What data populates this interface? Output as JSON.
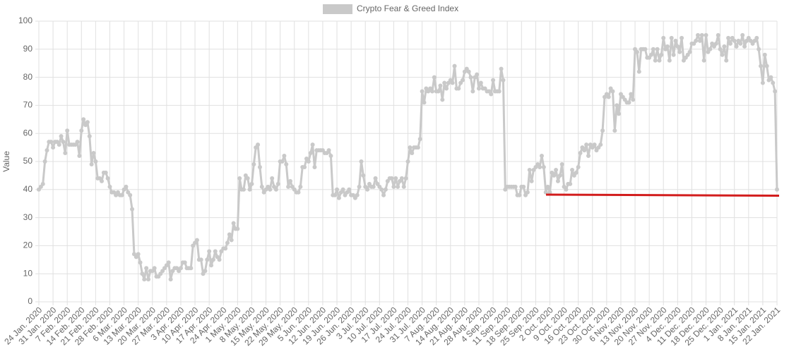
{
  "chart_data": {
    "type": "line",
    "legend": "top",
    "y_label": "Value",
    "ylim": [
      0,
      100
    ],
    "yticks": [
      0,
      10,
      20,
      30,
      40,
      50,
      60,
      70,
      80,
      90,
      100
    ],
    "grid": true,
    "categories": [
      "24 Jan. 2020",
      null,
      null,
      null,
      null,
      null,
      null,
      "31 Jan. 2020",
      null,
      null,
      null,
      null,
      null,
      null,
      "7 Feb. 2020",
      null,
      null,
      null,
      null,
      null,
      null,
      "14 Feb. 2020",
      null,
      null,
      null,
      null,
      null,
      null,
      "21 Feb. 2020",
      null,
      null,
      null,
      null,
      null,
      null,
      "28 Feb. 2020",
      null,
      null,
      null,
      null,
      null,
      null,
      "6 Mar. 2020",
      null,
      null,
      null,
      null,
      null,
      null,
      "13 Mar. 2020",
      null,
      null,
      null,
      null,
      null,
      null,
      "20 Mar. 2020",
      null,
      null,
      null,
      null,
      null,
      null,
      "27 Mar. 2020",
      null,
      null,
      null,
      null,
      null,
      null,
      "3 Apr. 2020",
      null,
      null,
      null,
      null,
      null,
      null,
      "10 Apr. 2020",
      null,
      null,
      null,
      null,
      null,
      null,
      "17 Apr. 2020",
      null,
      null,
      null,
      null,
      null,
      null,
      "24 Apr. 2020",
      null,
      null,
      null,
      null,
      null,
      null,
      "1 May. 2020",
      null,
      null,
      null,
      null,
      null,
      null,
      "8 May. 2020",
      null,
      null,
      null,
      null,
      null,
      null,
      "15 May. 2020",
      null,
      null,
      null,
      null,
      null,
      null,
      "22 May. 2020",
      null,
      null,
      null,
      null,
      null,
      null,
      "29 May. 2020",
      null,
      null,
      null,
      null,
      null,
      null,
      "5 Jun. 2020",
      null,
      null,
      null,
      null,
      null,
      null,
      "12 Jun. 2020",
      null,
      null,
      null,
      null,
      null,
      null,
      "19 Jun. 2020",
      null,
      null,
      null,
      null,
      null,
      null,
      "26 Jun. 2020",
      null,
      null,
      null,
      null,
      null,
      null,
      "3 Jul. 2020",
      null,
      null,
      null,
      null,
      null,
      null,
      "10 Jul. 2020",
      null,
      null,
      null,
      null,
      null,
      null,
      "17 Jul. 2020",
      null,
      null,
      null,
      null,
      null,
      null,
      "24 Jul. 2020",
      null,
      null,
      null,
      null,
      null,
      null,
      "31 Jul. 2020",
      null,
      null,
      null,
      null,
      null,
      null,
      "7 Aug. 2020",
      null,
      null,
      null,
      null,
      null,
      null,
      "14 Aug. 2020",
      null,
      null,
      null,
      null,
      null,
      null,
      "21 Aug. 2020",
      null,
      null,
      null,
      null,
      null,
      null,
      "28 Aug. 2020",
      null,
      null,
      null,
      null,
      null,
      null,
      "4 Sep. 2020",
      null,
      null,
      null,
      null,
      null,
      null,
      "11 Sep. 2020",
      null,
      null,
      null,
      null,
      null,
      null,
      "18 Sep. 2020",
      null,
      null,
      null,
      null,
      null,
      null,
      "25 Sep. 2020",
      null,
      null,
      null,
      null,
      null,
      null,
      "2 Oct. 2020",
      null,
      null,
      null,
      null,
      null,
      null,
      "9 Oct. 2020",
      null,
      null,
      null,
      null,
      null,
      null,
      "16 Oct. 2020",
      null,
      null,
      null,
      null,
      null,
      null,
      "23 Oct. 2020",
      null,
      null,
      null,
      null,
      null,
      null,
      "30 Oct. 2020",
      null,
      null,
      null,
      null,
      null,
      null,
      "6 Nov. 2020",
      null,
      null,
      null,
      null,
      null,
      null,
      "13 Nov. 2020",
      null,
      null,
      null,
      null,
      null,
      null,
      "20 Nov. 2020",
      null,
      null,
      null,
      null,
      null,
      null,
      "27 Nov. 2020",
      null,
      null,
      null,
      null,
      null,
      null,
      "4 Dec. 2020",
      null,
      null,
      null,
      null,
      null,
      null,
      "11 Dec. 2020",
      null,
      null,
      null,
      null,
      null,
      null,
      "18 Dec. 2020",
      null,
      null,
      null,
      null,
      null,
      null,
      "25 Dec. 2020",
      null,
      null,
      null,
      null,
      null,
      null,
      "1 Jan. 2021",
      null,
      null,
      null,
      null,
      null,
      null,
      "8 Jan. 2021",
      null,
      null,
      null,
      null,
      null,
      null,
      "15 Jan. 2021",
      null,
      null,
      null,
      null,
      null,
      null,
      "22 Jan. 2021"
    ],
    "series": [
      {
        "name": "Crypto Fear & Greed Index",
        "color": "#c9c9c9",
        "values": [
          40,
          41,
          42,
          50,
          54,
          57,
          57,
          55,
          57,
          57,
          56,
          59,
          57,
          53,
          61,
          56,
          56,
          56,
          56,
          57,
          52,
          61,
          65,
          63,
          64,
          59,
          49,
          53,
          50,
          44,
          44,
          43,
          46,
          46,
          44,
          41,
          39,
          39,
          38,
          39,
          38,
          38,
          40,
          41,
          39,
          38,
          33,
          17,
          16,
          17,
          14,
          10,
          8,
          12,
          8,
          11,
          11,
          12,
          9,
          9,
          10,
          11,
          12,
          13,
          14,
          8,
          11,
          12,
          12,
          11,
          12,
          14,
          14,
          12,
          12,
          12,
          20,
          21,
          22,
          15,
          15,
          10,
          11,
          15,
          18,
          13,
          15,
          18,
          16,
          15,
          18,
          19,
          19,
          21,
          24,
          22,
          28,
          26,
          26,
          44,
          40,
          40,
          45,
          44,
          40,
          42,
          49,
          55,
          56,
          48,
          41,
          39,
          40,
          41,
          40,
          44,
          41,
          40,
          42,
          50,
          50,
          52,
          49,
          41,
          43,
          41,
          40,
          39,
          39,
          41,
          48,
          48,
          51,
          50,
          53,
          56,
          48,
          54,
          54,
          54,
          54,
          53,
          53,
          54,
          52,
          38,
          38,
          40,
          37,
          39,
          40,
          38,
          39,
          40,
          38,
          38,
          37,
          38,
          41,
          50,
          45,
          41,
          40,
          42,
          41,
          41,
          44,
          42,
          41,
          40,
          38,
          40,
          43,
          44,
          44,
          41,
          44,
          41,
          43,
          44,
          41,
          44,
          50,
          55,
          53,
          55,
          55,
          55,
          58,
          75,
          71,
          76,
          75,
          76,
          75,
          80,
          75,
          75,
          77,
          72,
          78,
          76,
          78,
          79,
          78,
          84,
          76,
          76,
          78,
          79,
          82,
          83,
          82,
          80,
          75,
          80,
          81,
          76,
          78,
          76,
          76,
          75,
          75,
          74,
          79,
          75,
          75,
          75,
          83,
          79,
          40,
          41,
          41,
          41,
          41,
          41,
          38,
          38,
          41,
          41,
          38,
          39,
          47,
          43,
          47,
          48,
          49,
          48,
          52,
          48,
          39,
          41,
          39,
          46,
          45,
          47,
          43,
          45,
          49,
          41,
          40,
          42,
          42,
          47,
          45,
          46,
          48,
          53,
          55,
          54,
          56,
          52,
          56,
          55,
          56,
          54,
          55,
          56,
          61,
          73,
          74,
          73,
          76,
          75,
          61,
          70,
          67,
          74,
          73,
          72,
          71,
          71,
          74,
          72,
          90,
          89,
          82,
          90,
          90,
          90,
          87,
          87,
          88,
          90,
          86,
          90,
          86,
          88,
          94,
          90,
          91,
          86,
          94,
          88,
          93,
          91,
          89,
          94,
          86,
          87,
          88,
          89,
          92,
          92,
          93,
          95,
          93,
          95,
          86,
          95,
          89,
          90,
          92,
          91,
          92,
          95,
          90,
          88,
          91,
          86,
          94,
          92,
          94,
          93,
          91,
          93,
          92,
          95,
          91,
          93,
          94,
          93,
          92,
          93,
          94,
          90,
          84,
          78,
          88,
          84,
          79,
          80,
          78,
          75,
          40
        ]
      }
    ]
  }
}
